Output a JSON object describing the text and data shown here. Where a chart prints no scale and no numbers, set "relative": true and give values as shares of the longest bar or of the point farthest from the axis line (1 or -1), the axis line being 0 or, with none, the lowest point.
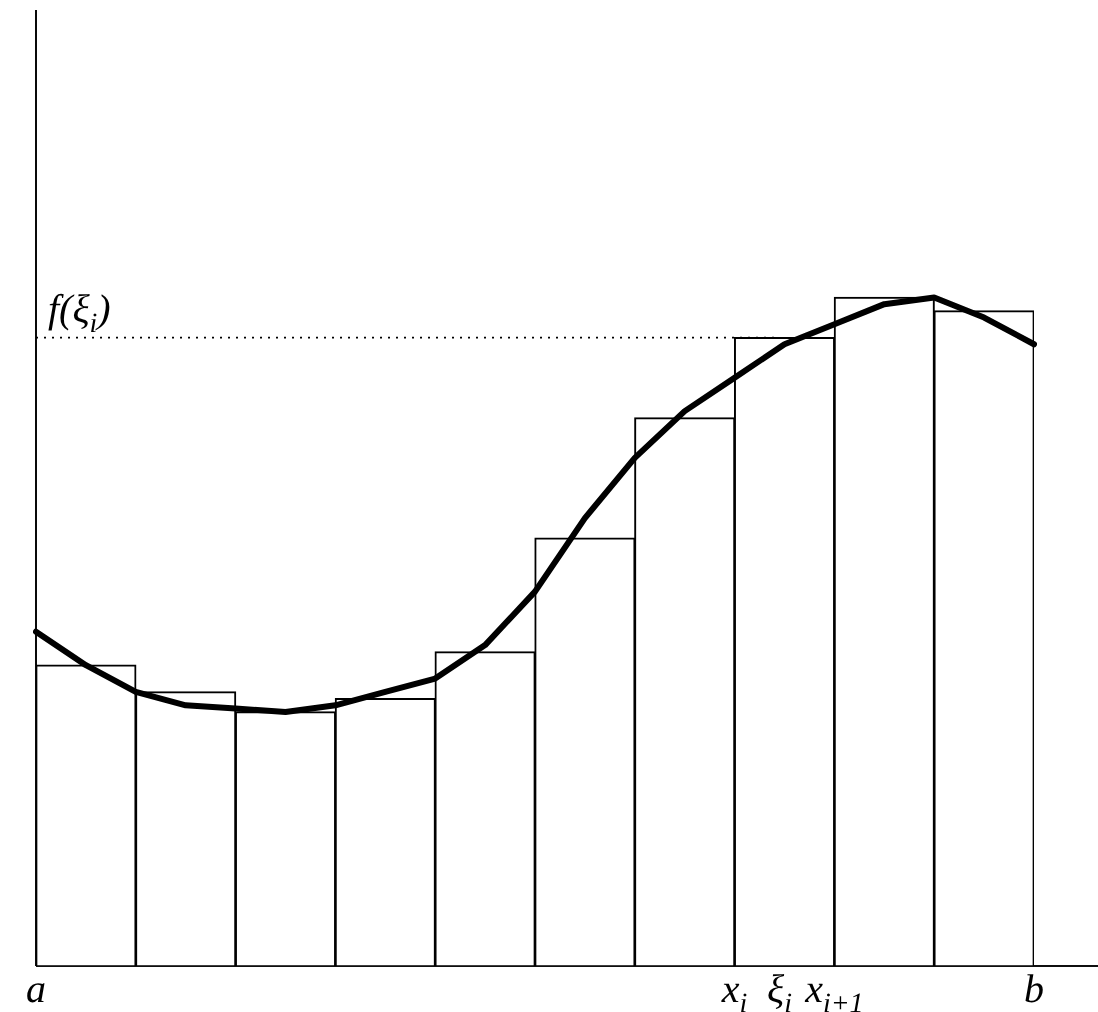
{
  "chart_data": [
    {
      "type": "bar",
      "relative": true,
      "categories": [
        null,
        null,
        null,
        null,
        null,
        null,
        null,
        null,
        null,
        null
      ],
      "series": [
        {
          "color": "#ffffff",
          "values": [
            0.45,
            0.41,
            0.38,
            0.4,
            0.47,
            0.64,
            0.82,
            0.94,
            1.0,
            0.98
          ]
        }
      ],
      "annotations": [
        "a",
        "x$_{i}$",
        "ξ$_{i}$",
        "x$_{i+1}$",
        "b"
      ],
      "ref_lines": [
        {
          "axis": "y",
          "value": 0.94,
          "label": "f(ξ$_{i}$)",
          "line_style": "dotted"
        }
      ]
    },
    {
      "type": "line",
      "relative": true,
      "categories": [
        null,
        null,
        null,
        null,
        null,
        null,
        null,
        null,
        null,
        null,
        null,
        null,
        null,
        null,
        null,
        null,
        null,
        null,
        null,
        null,
        null
      ],
      "series": [
        {
          "color": "#000000",
          "values": [
            0.5,
            0.45,
            0.41,
            0.39,
            0.385,
            0.38,
            0.39,
            0.41,
            0.43,
            0.48,
            0.56,
            0.67,
            0.76,
            0.83,
            0.88,
            0.93,
            0.96,
            0.99,
            1.0,
            0.97,
            0.93
          ]
        }
      ],
      "marker": "none",
      "line_style": "solid"
    }
  ]
}
